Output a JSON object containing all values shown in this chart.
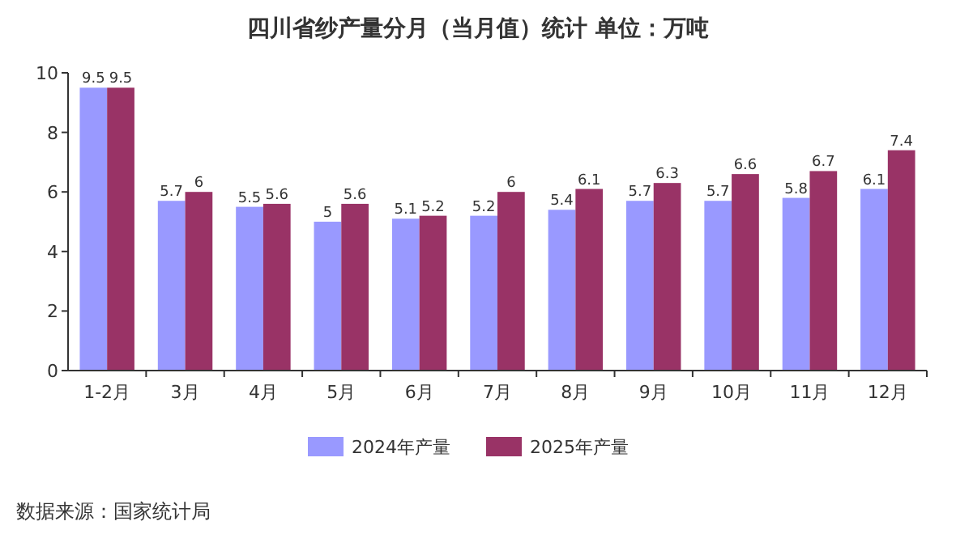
{
  "chart_data": {
    "type": "bar",
    "title": "四川省纱产量分月（当月值）统计 单位：万吨",
    "categories": [
      "1-2月",
      "3月",
      "4月",
      "5月",
      "6月",
      "7月",
      "8月",
      "9月",
      "10月",
      "11月",
      "12月"
    ],
    "series": [
      {
        "name": "2024年产量",
        "color": "#9999ff",
        "values": [
          9.5,
          5.7,
          5.5,
          5,
          5.1,
          5.2,
          5.4,
          5.7,
          5.7,
          5.8,
          6.1
        ]
      },
      {
        "name": "2025年产量",
        "color": "#993366",
        "values": [
          9.5,
          6,
          5.6,
          5.6,
          5.2,
          6,
          6.1,
          6.3,
          6.6,
          6.7,
          7.4
        ]
      }
    ],
    "ylim": [
      0,
      10
    ],
    "yticks": [
      0,
      2,
      4,
      6,
      8,
      10
    ],
    "data_labels": true,
    "legend": "bottom",
    "annotations": [
      "数据来源：国家统计局"
    ]
  }
}
